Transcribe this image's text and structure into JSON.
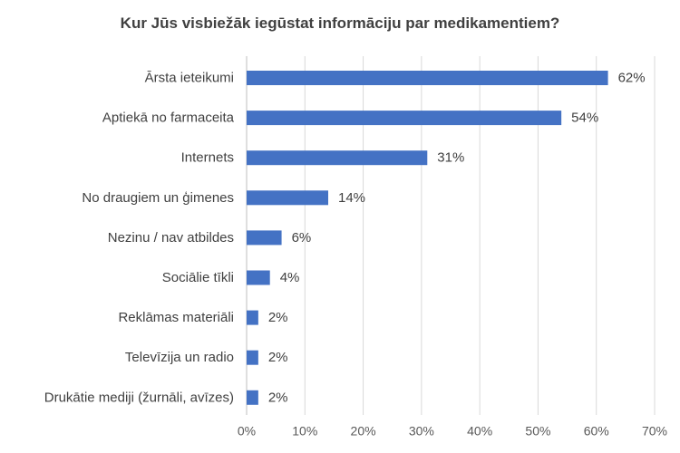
{
  "chart_data": {
    "type": "bar",
    "orientation": "horizontal",
    "title": "Kur Jūs visbiežāk iegūstat informāciju par medikamentiem?",
    "categories": [
      "Ārsta ieteikumi",
      "Aptiekā no farmaceita",
      "Internets",
      "No draugiem un ģimenes",
      "Nezinu / nav atbildes",
      "Sociālie tīkli",
      "Reklāmas materiāli",
      "Televīzija un radio",
      "Drukātie mediji (žurnāli, avīzes)"
    ],
    "values": [
      62,
      54,
      31,
      14,
      6,
      4,
      2,
      2,
      2
    ],
    "value_labels": [
      "62%",
      "54%",
      "31%",
      "14%",
      "6%",
      "4%",
      "2%",
      "2%",
      "2%"
    ],
    "xlim": [
      0,
      70
    ],
    "xticks": [
      0,
      10,
      20,
      30,
      40,
      50,
      60,
      70
    ],
    "xtick_labels": [
      "0%",
      "10%",
      "20%",
      "30%",
      "40%",
      "50%",
      "60%",
      "70%"
    ],
    "xlabel": "",
    "ylabel": "",
    "grid": "vertical",
    "legend": "none",
    "bar_color": "#4472c4"
  }
}
